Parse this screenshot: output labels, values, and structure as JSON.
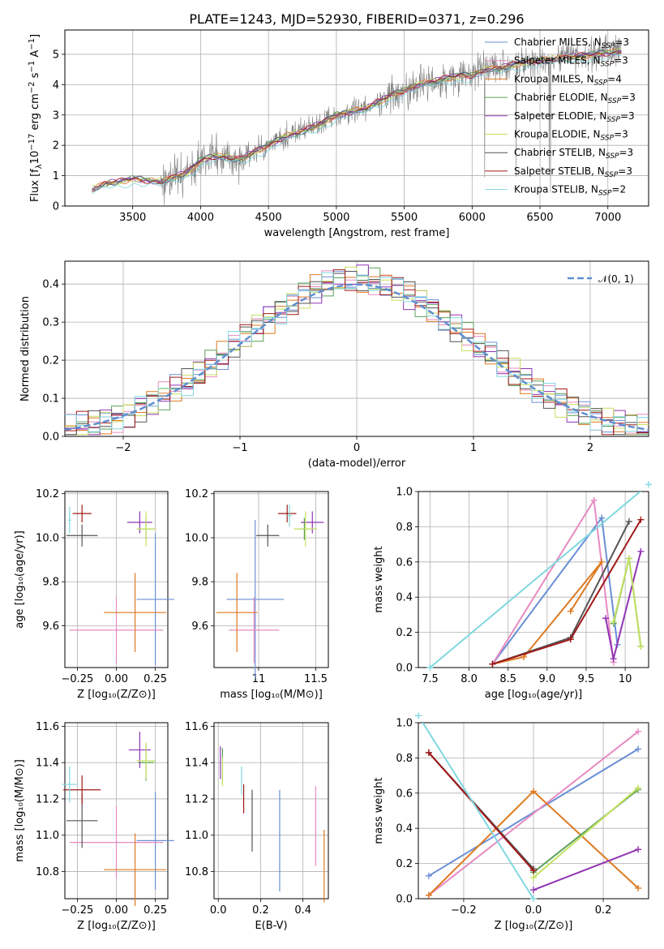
{
  "figure": {
    "title": "PLATE=1243, MJD=52930, FIBERID=0371, z=0.296"
  },
  "legend_spectrum": [
    {
      "label": "Chabrier MILES, N",
      "sub": "SSP",
      "suffix": "=3",
      "color": "#6a8fd6"
    },
    {
      "label": "Salpeter MILES, N",
      "sub": "SSP",
      "suffix": "=3",
      "color": "#e68ac0"
    },
    {
      "label": "Kroupa MILES, N",
      "sub": "SSP",
      "suffix": "=4",
      "color": "#de7a22"
    },
    {
      "label": "Chabrier ELODIE, N",
      "sub": "SSP",
      "suffix": "=3",
      "color": "#5aa05a"
    },
    {
      "label": "Salpeter ELODIE, N",
      "sub": "SSP",
      "suffix": "=3",
      "color": "#9134b4"
    },
    {
      "label": "Kroupa ELODIE, N",
      "sub": "SSP",
      "suffix": "=3",
      "color": "#c4e060"
    },
    {
      "label": "Chabrier STELIB, N",
      "sub": "SSP",
      "suffix": "=3",
      "color": "#555555"
    },
    {
      "label": "Salpeter STELIB, N",
      "sub": "SSP",
      "suffix": "=3",
      "color": "#a01818"
    },
    {
      "label": "Kroupa STELIB, N",
      "sub": "SSP",
      "suffix": "=2",
      "color": "#80d8e0"
    }
  ],
  "legend_hist": {
    "label": "𝒩(0, 1)",
    "color": "#5f8fd0"
  },
  "chart_data": [
    {
      "id": "spectrum",
      "type": "line",
      "xlabel": "wavelength [Angstrom, rest frame]",
      "ylabel_main": "Flux [f",
      "ylabel_sub": "λ",
      "ylabel_rest": "10",
      "ylabel_exp": "−17",
      "ylabel_units": " erg cm",
      "ylabel_exp2": "−2",
      "ylabel_s": " s",
      "ylabel_exp3": "−1",
      "ylabel_A": " A",
      "ylabel_exp4": "−1",
      "ylabel_close": "]",
      "xlim": [
        3000,
        7300
      ],
      "ylim": [
        0,
        5.8
      ],
      "xticks": [
        3500,
        4000,
        4500,
        5000,
        5500,
        6000,
        6500,
        7000
      ],
      "yticks": [
        0,
        1,
        2,
        3,
        4,
        5
      ],
      "model_points": [
        [
          3200,
          0.55
        ],
        [
          3300,
          0.75
        ],
        [
          3400,
          0.8
        ],
        [
          3500,
          0.9
        ],
        [
          3600,
          0.85
        ],
        [
          3700,
          0.8
        ],
        [
          3800,
          0.95
        ],
        [
          3900,
          1.1
        ],
        [
          4000,
          1.5
        ],
        [
          4100,
          1.65
        ],
        [
          4200,
          1.6
        ],
        [
          4300,
          1.55
        ],
        [
          4400,
          1.8
        ],
        [
          4500,
          2.0
        ],
        [
          4600,
          2.25
        ],
        [
          4700,
          2.4
        ],
        [
          4800,
          2.55
        ],
        [
          4900,
          2.75
        ],
        [
          5000,
          3.0
        ],
        [
          5100,
          3.1
        ],
        [
          5200,
          3.2
        ],
        [
          5300,
          3.4
        ],
        [
          5400,
          3.65
        ],
        [
          5500,
          3.8
        ],
        [
          5600,
          4.0
        ],
        [
          5700,
          4.1
        ],
        [
          5800,
          4.2
        ],
        [
          5900,
          4.3
        ],
        [
          6000,
          4.3
        ],
        [
          6100,
          4.5
        ],
        [
          6200,
          4.55
        ],
        [
          6300,
          4.65
        ],
        [
          6400,
          4.75
        ],
        [
          6500,
          4.8
        ],
        [
          6600,
          4.85
        ],
        [
          6700,
          4.9
        ],
        [
          6800,
          4.95
        ],
        [
          6900,
          5.0
        ],
        [
          7000,
          5.05
        ],
        [
          7100,
          5.1
        ]
      ]
    },
    {
      "id": "histogram",
      "type": "bar",
      "xlabel": "(data-model)/error",
      "ylabel": "Normed distribution",
      "xlim": [
        -2.5,
        2.5
      ],
      "ylim": [
        0,
        0.46
      ],
      "xticks": [
        -2,
        -1,
        0,
        1,
        2
      ],
      "yticks": [
        0.0,
        0.1,
        0.2,
        0.3,
        0.4
      ]
    },
    {
      "id": "age_vs_Z",
      "type": "scatter",
      "xlabel": "Z [log₁₀(Z/Z⊙)]",
      "ylabel": "age  [log₁₀(age/yr)]",
      "xlim": [
        -0.33,
        0.33
      ],
      "ylim": [
        9.41,
        10.21
      ],
      "xticks": [
        -0.25,
        0.0,
        0.25
      ],
      "xticklabels": [
        "−0.25",
        "0.00",
        "0.25"
      ],
      "yticks": [
        9.6,
        9.8,
        10.0,
        10.2
      ],
      "points": [
        {
          "x": 0.25,
          "y": 9.72,
          "xerr": 0.12,
          "yerr": 0.3,
          "color": "#6a8fd6"
        },
        {
          "x": 0.0,
          "y": 9.58,
          "xerr": 0.3,
          "yerr": 0.15,
          "color": "#e68ac0"
        },
        {
          "x": 0.12,
          "y": 9.66,
          "xerr": 0.2,
          "yerr": 0.18,
          "color": "#de7a22"
        },
        {
          "x": 0.19,
          "y": 10.04,
          "xerr": 0.05,
          "yerr": 0.05,
          "color": "#5aa05a"
        },
        {
          "x": 0.15,
          "y": 10.07,
          "xerr": 0.08,
          "yerr": 0.05,
          "color": "#9134b4"
        },
        {
          "x": 0.19,
          "y": 10.04,
          "xerr": 0.06,
          "yerr": 0.08,
          "color": "#c4e060"
        },
        {
          "x": -0.22,
          "y": 10.01,
          "xerr": 0.1,
          "yerr": 0.05,
          "color": "#555555"
        },
        {
          "x": -0.22,
          "y": 10.11,
          "xerr": 0.06,
          "yerr": 0.04,
          "color": "#a01818"
        },
        {
          "x": -0.3,
          "y": 10.08,
          "xerr": 0.01,
          "yerr": 0.06,
          "color": "#80d8e0"
        }
      ]
    },
    {
      "id": "age_vs_mass",
      "type": "scatter",
      "xlabel": "mass [log₁₀(M/M⊙)]",
      "xlim": [
        10.61,
        11.61
      ],
      "ylim": [
        9.41,
        10.21
      ],
      "xticks": [
        11.0,
        11.5
      ],
      "yticks": [
        9.6,
        9.8,
        10.0,
        10.2
      ],
      "points": [
        {
          "x": 10.97,
          "y": 9.72,
          "xerr": 0.25,
          "yerr": 0.36,
          "color": "#6a8fd6"
        },
        {
          "x": 10.96,
          "y": 9.58,
          "xerr": 0.22,
          "yerr": 0.15,
          "color": "#e68ac0"
        },
        {
          "x": 10.81,
          "y": 9.66,
          "xerr": 0.18,
          "yerr": 0.18,
          "color": "#de7a22"
        },
        {
          "x": 11.4,
          "y": 10.04,
          "xerr": 0.05,
          "yerr": 0.05,
          "color": "#5aa05a"
        },
        {
          "x": 11.47,
          "y": 10.07,
          "xerr": 0.1,
          "yerr": 0.05,
          "color": "#9134b4"
        },
        {
          "x": 11.41,
          "y": 10.04,
          "xerr": 0.1,
          "yerr": 0.08,
          "color": "#c4e060"
        },
        {
          "x": 11.08,
          "y": 10.01,
          "xerr": 0.1,
          "yerr": 0.05,
          "color": "#555555"
        },
        {
          "x": 11.25,
          "y": 10.11,
          "xerr": 0.08,
          "yerr": 0.04,
          "color": "#a01818"
        },
        {
          "x": 11.27,
          "y": 10.1,
          "xerr": 0.02,
          "yerr": 0.05,
          "color": "#80d8e0"
        }
      ]
    },
    {
      "id": "massweight_vs_age",
      "type": "line",
      "xlabel": "age  [log₁₀(age/yr)]",
      "ylabel": "mass weight",
      "xlim": [
        7.35,
        10.3
      ],
      "ylim": [
        0,
        1
      ],
      "xticks": [
        7.5,
        8.0,
        8.5,
        9.0,
        9.5,
        10.0
      ],
      "yticks": [
        0.0,
        0.2,
        0.4,
        0.6,
        0.8,
        1.0
      ],
      "series": [
        {
          "color": "#6a8fd6",
          "pts": [
            [
              8.3,
              0.02
            ],
            [
              9.7,
              0.85
            ],
            [
              9.9,
              0.13
            ]
          ]
        },
        {
          "color": "#e68ac0",
          "pts": [
            [
              8.3,
              0.02
            ],
            [
              9.6,
              0.95
            ],
            [
              9.85,
              0.03
            ]
          ]
        },
        {
          "color": "#de7a22",
          "pts": [
            [
              8.3,
              0.02
            ],
            [
              8.7,
              0.06
            ],
            [
              9.7,
              0.6
            ],
            [
              9.3,
              0.32
            ]
          ]
        },
        {
          "color": "#5aa05a",
          "pts": [
            [
              9.85,
              0.25
            ],
            [
              10.05,
              0.62
            ],
            [
              10.2,
              0.12
            ]
          ]
        },
        {
          "color": "#9134b4",
          "pts": [
            [
              9.75,
              0.28
            ],
            [
              9.85,
              0.05
            ],
            [
              10.2,
              0.66
            ]
          ]
        },
        {
          "color": "#c4e060",
          "pts": [
            [
              9.85,
              0.26
            ],
            [
              10.05,
              0.62
            ],
            [
              10.2,
              0.12
            ]
          ]
        },
        {
          "color": "#555555",
          "pts": [
            [
              8.3,
              0.02
            ],
            [
              9.3,
              0.17
            ],
            [
              10.05,
              0.83
            ]
          ]
        },
        {
          "color": "#a01818",
          "pts": [
            [
              8.3,
              0.02
            ],
            [
              9.3,
              0.16
            ],
            [
              10.2,
              0.84
            ]
          ]
        },
        {
          "color": "#80d8e0",
          "pts": [
            [
              7.5,
              0.0
            ],
            [
              10.3,
              1.04
            ]
          ]
        }
      ]
    },
    {
      "id": "mass_vs_Z",
      "type": "scatter",
      "xlabel": "Z [log₁₀(Z/Z⊙)]",
      "ylabel": "mass [log₁₀(M/M⊙)]",
      "xlim": [
        -0.33,
        0.33
      ],
      "ylim": [
        10.65,
        11.62
      ],
      "xticks": [
        -0.25,
        0.0,
        0.25
      ],
      "xticklabels": [
        "−0.25",
        "0.00",
        "0.25"
      ],
      "yticks": [
        10.8,
        11.0,
        11.2,
        11.4,
        11.6
      ],
      "points": [
        {
          "x": 0.25,
          "y": 10.97,
          "xerr": 0.12,
          "yerr": 0.27,
          "color": "#6a8fd6"
        },
        {
          "x": 0.0,
          "y": 10.96,
          "xerr": 0.3,
          "yerr": 0.2,
          "color": "#e68ac0"
        },
        {
          "x": 0.12,
          "y": 10.81,
          "xerr": 0.2,
          "yerr": 0.2,
          "color": "#de7a22"
        },
        {
          "x": 0.19,
          "y": 11.4,
          "xerr": 0.05,
          "yerr": 0.1,
          "color": "#5aa05a"
        },
        {
          "x": 0.15,
          "y": 11.47,
          "xerr": 0.07,
          "yerr": 0.1,
          "color": "#9134b4"
        },
        {
          "x": 0.19,
          "y": 11.41,
          "xerr": 0.06,
          "yerr": 0.1,
          "color": "#c4e060"
        },
        {
          "x": -0.22,
          "y": 11.08,
          "xerr": 0.1,
          "yerr": 0.15,
          "color": "#555555"
        },
        {
          "x": -0.22,
          "y": 11.25,
          "xerr": 0.12,
          "yerr": 0.08,
          "color": "#a01818"
        },
        {
          "x": -0.3,
          "y": 11.28,
          "xerr": 0.05,
          "yerr": 0.1,
          "color": "#80d8e0"
        }
      ]
    },
    {
      "id": "mass_vs_ebv",
      "type": "scatter",
      "xlabel": "E(B-V)",
      "xlim": [
        -0.02,
        0.52
      ],
      "ylim": [
        10.65,
        11.62
      ],
      "xticks": [
        0.0,
        0.2,
        0.4
      ],
      "yticks": [
        10.8,
        11.0,
        11.2,
        11.4,
        11.6
      ],
      "points": [
        {
          "x": 0.29,
          "y": 10.97,
          "xerr": 0,
          "yerr": 0.28,
          "color": "#6a8fd6"
        },
        {
          "x": 0.46,
          "y": 11.05,
          "xerr": 0,
          "yerr": 0.22,
          "color": "#e68ac0"
        },
        {
          "x": 0.5,
          "y": 10.83,
          "xerr": 0,
          "yerr": 0.2,
          "color": "#de7a22"
        },
        {
          "x": 0.02,
          "y": 11.38,
          "xerr": 0,
          "yerr": 0.1,
          "color": "#5aa05a"
        },
        {
          "x": 0.01,
          "y": 11.4,
          "xerr": 0,
          "yerr": 0.09,
          "color": "#9134b4"
        },
        {
          "x": 0.02,
          "y": 11.35,
          "xerr": 0,
          "yerr": 0.08,
          "color": "#c4e060"
        },
        {
          "x": 0.16,
          "y": 11.08,
          "xerr": 0,
          "yerr": 0.17,
          "color": "#555555"
        },
        {
          "x": 0.12,
          "y": 11.2,
          "xerr": 0,
          "yerr": 0.08,
          "color": "#a01818"
        },
        {
          "x": 0.11,
          "y": 11.3,
          "xerr": 0,
          "yerr": 0.08,
          "color": "#80d8e0"
        }
      ]
    },
    {
      "id": "massweight_vs_Z",
      "type": "line",
      "xlabel": "Z [log₁₀(Z/Z⊙)]",
      "ylabel": "mass weight",
      "xlim": [
        -0.33,
        0.33
      ],
      "ylim": [
        0,
        1
      ],
      "xticks": [
        -0.2,
        0.0,
        0.2
      ],
      "xticklabels": [
        "−0.2",
        "0.0",
        "0.2"
      ],
      "yticks": [
        0.0,
        0.2,
        0.4,
        0.6,
        0.8,
        1.0
      ],
      "series": [
        {
          "color": "#6a8fd6",
          "pts": [
            [
              -0.3,
              0.13
            ],
            [
              0.3,
              0.85
            ]
          ]
        },
        {
          "color": "#e68ac0",
          "pts": [
            [
              -0.3,
              0.02
            ],
            [
              0.3,
              0.95
            ]
          ]
        },
        {
          "color": "#de7a22",
          "pts": [
            [
              -0.3,
              0.02
            ],
            [
              0.0,
              0.61
            ],
            [
              0.3,
              0.06
            ]
          ]
        },
        {
          "color": "#5aa05a",
          "pts": [
            [
              0.0,
              0.15
            ],
            [
              0.3,
              0.62
            ]
          ]
        },
        {
          "color": "#9134b4",
          "pts": [
            [
              0.0,
              0.05
            ],
            [
              0.3,
              0.28
            ]
          ]
        },
        {
          "color": "#c4e060",
          "pts": [
            [
              0.0,
              0.12
            ],
            [
              0.3,
              0.63
            ]
          ]
        },
        {
          "color": "#555555",
          "pts": [
            [
              -0.3,
              0.83
            ],
            [
              0.0,
              0.17
            ]
          ]
        },
        {
          "color": "#a01818",
          "pts": [
            [
              -0.3,
              0.83
            ],
            [
              0.0,
              0.16
            ]
          ]
        },
        {
          "color": "#80d8e0",
          "pts": [
            [
              -0.33,
              1.04
            ],
            [
              0.0,
              0.0
            ]
          ]
        }
      ]
    }
  ]
}
